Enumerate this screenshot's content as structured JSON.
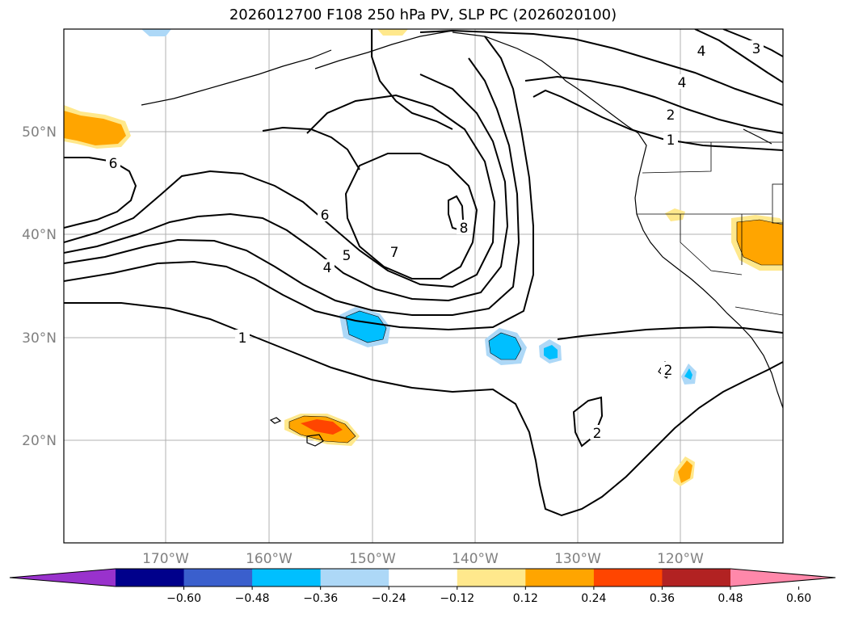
{
  "title": "2026012700 F108 250 hPa PV, SLP PC (2026020100)",
  "map": {
    "region": "North-East Pacific / Western North America",
    "lon_labels": [
      "170°W",
      "160°W",
      "150°W",
      "140°W",
      "130°W",
      "120°W"
    ],
    "lat_labels": [
      "50°N",
      "40°N",
      "30°N",
      "20°N"
    ],
    "contour_labels": [
      "6",
      "6",
      "7",
      "5",
      "4",
      "8",
      "1",
      "2",
      "4",
      "3",
      "2",
      "1",
      "4",
      "2"
    ]
  },
  "colorbar": {
    "tick_labels": [
      "−0.60",
      "−0.48",
      "−0.36",
      "−0.24",
      "−0.12",
      "0.12",
      "0.24",
      "0.36",
      "0.48",
      "0.60"
    ],
    "colors": [
      "#9932cc",
      "#00008b",
      "#3a5fcd",
      "#00bfff",
      "#add8f7",
      "#ffffff",
      "#ffe88c",
      "#ffa500",
      "#ff4500",
      "#b22222",
      "#ff88aa"
    ]
  }
}
